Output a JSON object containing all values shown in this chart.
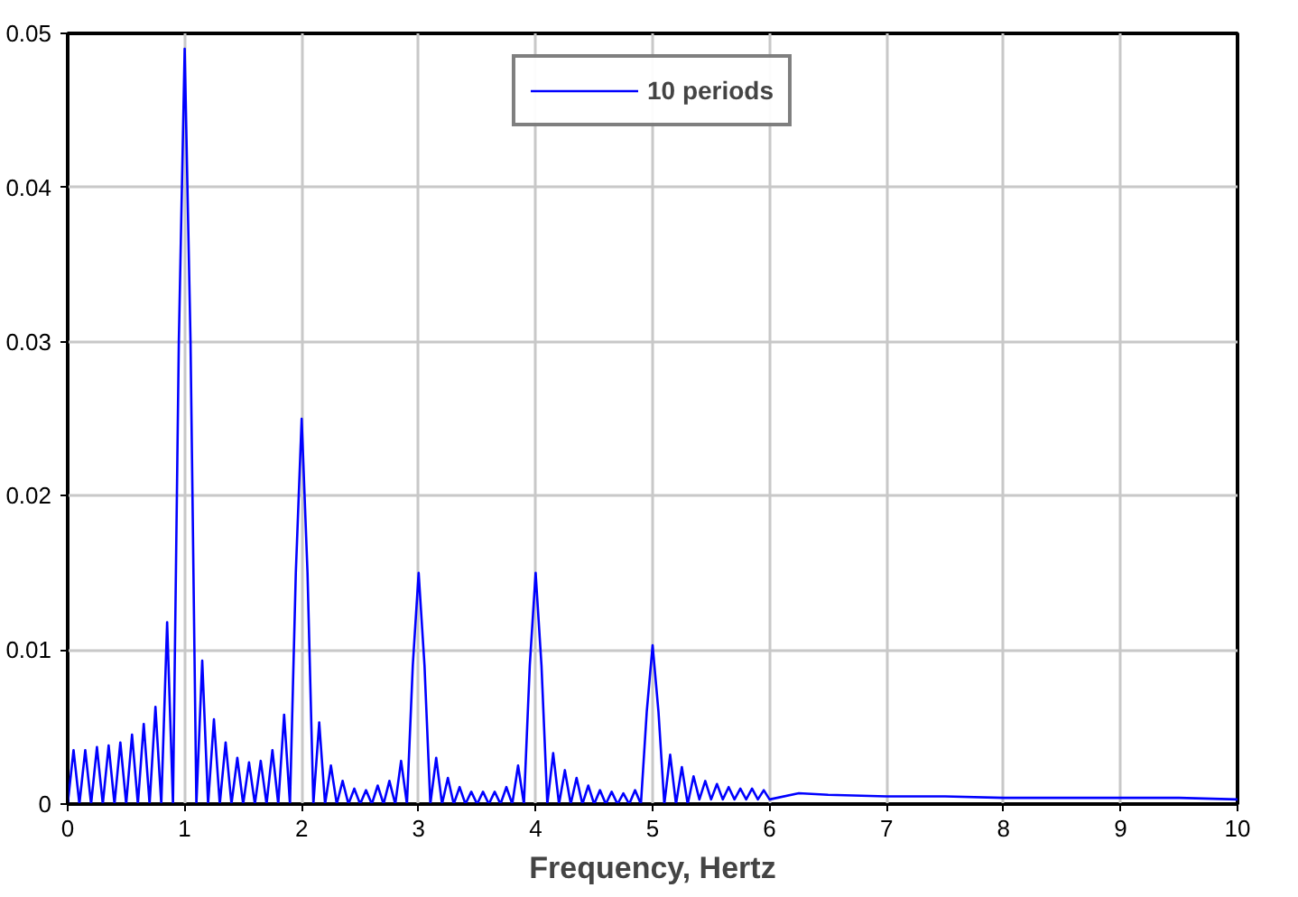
{
  "chart_data": {
    "type": "line",
    "xlabel": "Frequency, Hertz",
    "xlim": [
      0,
      10
    ],
    "ylim": [
      0,
      0.05
    ],
    "xticks": [
      0,
      1,
      2,
      3,
      4,
      5,
      6,
      7,
      8,
      9,
      10
    ],
    "yticks": [
      0,
      0.01,
      0.02,
      0.03,
      0.04,
      0.05
    ],
    "grid": true,
    "legend": "top",
    "marker": "none",
    "line_style": "solid",
    "series": [
      {
        "name": "10 periods",
        "color": "#0000ff",
        "x": [
          0,
          0.05,
          0.1,
          0.15,
          0.2,
          0.25,
          0.3,
          0.35,
          0.4,
          0.45,
          0.5,
          0.55,
          0.6,
          0.65,
          0.7,
          0.75,
          0.8,
          0.85,
          0.9,
          0.95,
          1.0,
          1.05,
          1.1,
          1.15,
          1.2,
          1.25,
          1.3,
          1.35,
          1.4,
          1.45,
          1.5,
          1.55,
          1.6,
          1.65,
          1.7,
          1.75,
          1.8,
          1.85,
          1.9,
          1.95,
          2.0,
          2.05,
          2.1,
          2.15,
          2.2,
          2.25,
          2.3,
          2.35,
          2.4,
          2.45,
          2.5,
          2.55,
          2.6,
          2.65,
          2.7,
          2.75,
          2.8,
          2.85,
          2.9,
          2.95,
          3.0,
          3.05,
          3.1,
          3.15,
          3.2,
          3.25,
          3.3,
          3.35,
          3.4,
          3.45,
          3.5,
          3.55,
          3.6,
          3.65,
          3.7,
          3.75,
          3.8,
          3.85,
          3.9,
          3.95,
          4.0,
          4.05,
          4.1,
          4.15,
          4.2,
          4.25,
          4.3,
          4.35,
          4.4,
          4.45,
          4.5,
          4.55,
          4.6,
          4.65,
          4.7,
          4.75,
          4.8,
          4.85,
          4.9,
          4.95,
          5.0,
          5.05,
          5.1,
          5.15,
          5.2,
          5.25,
          5.3,
          5.35,
          5.4,
          5.45,
          5.5,
          5.55,
          5.6,
          5.65,
          5.7,
          5.75,
          5.8,
          5.85,
          5.9,
          5.95,
          6.0,
          6.25,
          6.5,
          7.0,
          7.5,
          8.0,
          8.5,
          9.0,
          9.5,
          10.0
        ],
        "values": [
          0,
          0.0035,
          0,
          0.0035,
          0,
          0.0037,
          0,
          0.0038,
          0,
          0.004,
          0,
          0.0045,
          0,
          0.0052,
          0,
          0.0063,
          0,
          0.0118,
          0,
          0.03,
          0.049,
          0.03,
          0,
          0.0093,
          0,
          0.0055,
          0,
          0.004,
          0,
          0.003,
          0,
          0.0027,
          0,
          0.0028,
          0,
          0.0035,
          0,
          0.0058,
          0,
          0.015,
          0.025,
          0.015,
          0,
          0.0053,
          0,
          0.0025,
          0,
          0.0015,
          0,
          0.001,
          0,
          0.0009,
          0,
          0.0012,
          0,
          0.0015,
          0,
          0.0028,
          0,
          0.009,
          0.015,
          0.009,
          0,
          0.003,
          0,
          0.0017,
          0,
          0.0011,
          0,
          0.0008,
          0,
          0.0008,
          0,
          0.0008,
          0,
          0.0011,
          0,
          0.0025,
          0,
          0.009,
          0.015,
          0.009,
          0,
          0.0033,
          0,
          0.0022,
          0,
          0.0017,
          0,
          0.0012,
          0,
          0.0009,
          0,
          0.0008,
          0,
          0.0007,
          0,
          0.0009,
          0,
          0.006,
          0.0103,
          0.006,
          0,
          0.0032,
          0,
          0.0024,
          0,
          0.0018,
          0.0003,
          0.0015,
          0.0003,
          0.0013,
          0.0003,
          0.0011,
          0.0003,
          0.001,
          0.0003,
          0.001,
          0.0003,
          0.0009,
          0.0003,
          0.0007,
          0.0006,
          0.0005,
          0.0005,
          0.0004,
          0.0004,
          0.0004,
          0.0004,
          0.0003
        ]
      }
    ]
  }
}
